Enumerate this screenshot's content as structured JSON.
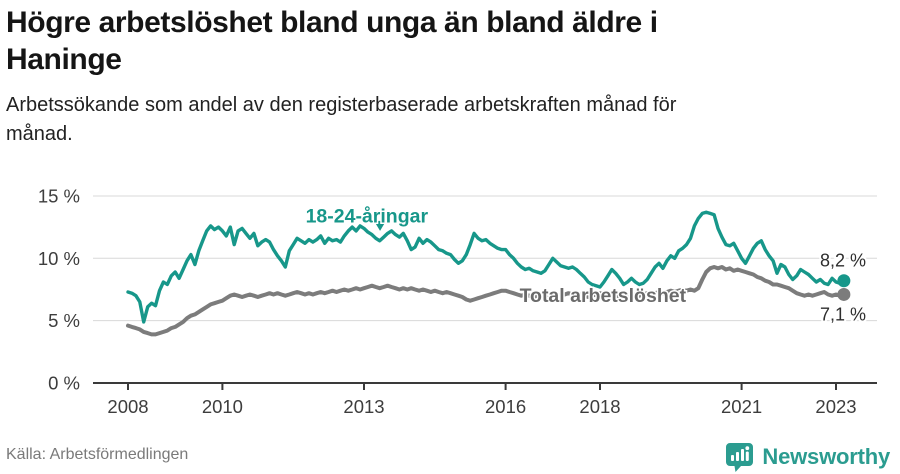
{
  "header": {
    "title": "Högre arbetslöshet bland unga än bland äldre i Haninge",
    "title_lines": [
      "Högre arbetslöshet bland unga än bland äldre i",
      "Haninge"
    ],
    "subtitle": "Arbetssökande som andel av den registerbaserade arbetskraften månad för månad.",
    "subtitle_lines": [
      "Arbetssökande som andel av den registerbaserade arbetskraften månad för",
      "månad."
    ]
  },
  "footer": {
    "source": "Källa: Arbetsförmedlingen",
    "brand": "Newsworthy",
    "brand_icon": "newsworthy-speech-bubble-bar-chart-icon"
  },
  "colors": {
    "teal": "#17978a",
    "gray": "#7c7c7c",
    "gray_label": "#6b6b6b",
    "value_label": "#2e2e2e",
    "axis": "#3a3a3a",
    "tick_text": "#3d3d3d",
    "grid": "#d8d8d8",
    "brand_teal": "#2b9c90"
  },
  "chart_data": {
    "type": "line",
    "title": "Högre arbetslöshet bland unga än bland äldre i Haninge",
    "xlabel": "",
    "ylabel": "Arbetssökande som andel av den registerbaserade arbetskraften",
    "x_unit": "månad",
    "x_start_year": 2008,
    "x_end_label": "2023",
    "months_per_step": 1,
    "x_ticks": [
      2008,
      2010,
      2013,
      2016,
      2018,
      2021,
      2023
    ],
    "x_tick_labels": [
      "2008",
      "2010",
      "2013",
      "2016",
      "2018",
      "2021",
      "2023"
    ],
    "y_ticks": [
      0,
      5,
      10,
      15
    ],
    "y_tick_labels": [
      "0 %",
      "5 %",
      "10 %",
      "15 %"
    ],
    "ylim": [
      0,
      16.5
    ],
    "grid": true,
    "legend_position": "inline-labels",
    "series": [
      {
        "name": "18-24-åringar",
        "color": "#17978a",
        "label_color": "#17978a",
        "end_value": 8.2,
        "end_label": "8,2 %",
        "label_t": 2013.06,
        "label_v": 13.4,
        "pointer_t": 2013.34,
        "pointer_v": 12.2,
        "values": [
          7.3,
          7.2,
          7.0,
          6.5,
          4.9,
          6.1,
          6.4,
          6.2,
          7.4,
          8.1,
          7.9,
          8.6,
          8.9,
          8.4,
          9.1,
          9.8,
          10.3,
          9.5,
          10.6,
          11.4,
          12.2,
          12.6,
          12.3,
          12.5,
          12.2,
          11.8,
          12.5,
          11.1,
          12.2,
          12.4,
          12.0,
          11.6,
          12.0,
          11.0,
          11.3,
          11.5,
          11.3,
          10.7,
          10.2,
          9.8,
          9.3,
          10.6,
          11.1,
          11.6,
          11.4,
          11.2,
          11.5,
          11.3,
          11.5,
          11.8,
          11.2,
          11.6,
          11.4,
          11.5,
          11.3,
          11.8,
          12.2,
          12.5,
          12.2,
          12.6,
          12.4,
          12.1,
          11.9,
          11.6,
          11.4,
          11.7,
          12.0,
          12.2,
          11.9,
          11.7,
          12.0,
          11.4,
          10.7,
          10.9,
          11.6,
          11.2,
          11.5,
          11.3,
          11.0,
          10.7,
          10.6,
          10.4,
          10.3,
          9.9,
          9.6,
          9.8,
          10.3,
          11.1,
          12.0,
          11.6,
          11.4,
          11.5,
          11.2,
          11.0,
          10.8,
          10.7,
          10.7,
          10.3,
          10.0,
          9.6,
          9.3,
          9.1,
          9.2,
          9.0,
          8.9,
          8.8,
          9.0,
          9.5,
          10.0,
          9.7,
          9.4,
          9.3,
          9.2,
          9.3,
          9.1,
          8.8,
          8.5,
          8.1,
          7.9,
          7.8,
          7.7,
          8.1,
          8.6,
          9.1,
          8.8,
          8.4,
          7.9,
          8.1,
          8.4,
          8.1,
          7.9,
          8.0,
          8.3,
          8.8,
          9.3,
          9.6,
          9.2,
          9.8,
          10.2,
          10.0,
          10.6,
          10.8,
          11.1,
          11.6,
          12.6,
          13.2,
          13.6,
          13.7,
          13.6,
          13.5,
          12.4,
          11.7,
          11.1,
          11.0,
          11.2,
          10.6,
          10.0,
          9.6,
          10.2,
          10.8,
          11.2,
          11.4,
          10.7,
          10.2,
          9.8,
          8.8,
          9.5,
          9.3,
          8.7,
          8.3,
          8.6,
          9.1,
          8.9,
          8.7,
          8.4,
          8.1,
          8.3,
          8.0,
          7.9,
          8.4,
          8.1,
          8.0,
          8.2
        ]
      },
      {
        "name": "Total arbetslöshet",
        "color": "#7c7c7c",
        "label_color": "#6b6b6b",
        "end_value": 7.1,
        "end_label": "7,1 %",
        "label_t": 2018.06,
        "label_v": 7.0,
        "values": [
          4.6,
          4.5,
          4.4,
          4.3,
          4.1,
          4.0,
          3.9,
          3.9,
          4.0,
          4.1,
          4.2,
          4.4,
          4.5,
          4.7,
          4.9,
          5.2,
          5.4,
          5.5,
          5.7,
          5.9,
          6.1,
          6.3,
          6.4,
          6.5,
          6.6,
          6.8,
          7.0,
          7.1,
          7.0,
          6.9,
          7.0,
          7.1,
          7.0,
          6.9,
          7.0,
          7.1,
          7.2,
          7.1,
          7.2,
          7.1,
          7.0,
          7.1,
          7.2,
          7.3,
          7.2,
          7.1,
          7.2,
          7.1,
          7.2,
          7.3,
          7.2,
          7.3,
          7.4,
          7.3,
          7.4,
          7.5,
          7.4,
          7.5,
          7.6,
          7.5,
          7.6,
          7.7,
          7.8,
          7.7,
          7.6,
          7.7,
          7.8,
          7.7,
          7.6,
          7.5,
          7.6,
          7.5,
          7.6,
          7.5,
          7.4,
          7.5,
          7.4,
          7.3,
          7.4,
          7.3,
          7.2,
          7.3,
          7.2,
          7.1,
          7.0,
          6.9,
          6.7,
          6.6,
          6.7,
          6.8,
          6.9,
          7.0,
          7.1,
          7.2,
          7.3,
          7.4,
          7.4,
          7.3,
          7.2,
          7.1,
          7.0,
          7.1,
          7.0,
          6.9,
          7.0,
          6.9,
          7.0,
          7.1,
          7.2,
          7.1,
          7.0,
          7.1,
          7.2,
          7.1,
          7.0,
          7.1,
          7.0,
          6.9,
          7.0,
          7.1,
          7.2,
          7.1,
          7.0,
          7.1,
          7.0,
          6.9,
          7.0,
          7.1,
          7.0,
          7.1,
          7.0,
          7.1,
          7.2,
          7.1,
          7.2,
          7.3,
          7.2,
          7.3,
          7.4,
          7.3,
          7.4,
          7.5,
          7.4,
          7.5,
          7.4,
          7.6,
          8.3,
          8.9,
          9.2,
          9.3,
          9.2,
          9.3,
          9.1,
          9.2,
          9.0,
          9.1,
          9.0,
          8.9,
          8.8,
          8.7,
          8.5,
          8.4,
          8.2,
          8.1,
          7.9,
          7.9,
          7.8,
          7.7,
          7.6,
          7.4,
          7.2,
          7.1,
          7.0,
          7.1,
          7.0,
          7.1,
          7.2,
          7.3,
          7.1,
          7.0,
          7.1,
          7.0,
          7.1
        ]
      }
    ]
  }
}
